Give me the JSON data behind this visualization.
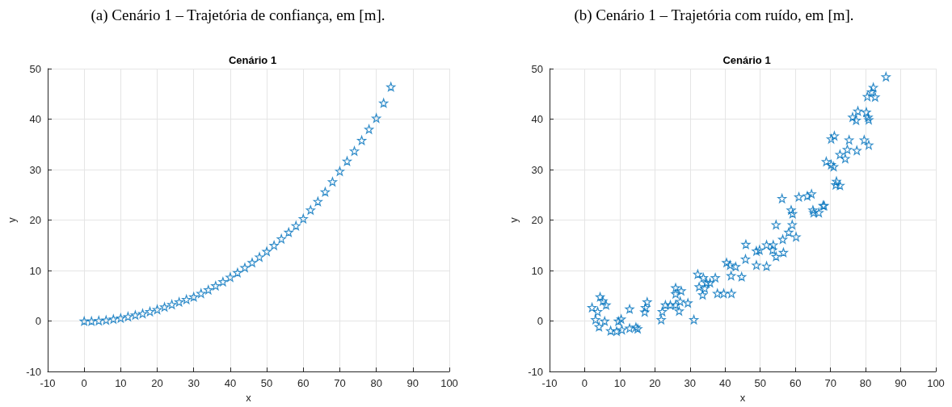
{
  "chart_data": [
    {
      "type": "scatter",
      "title": "Cenário 1",
      "annotations": [
        "(a) Cenário 1 – Trajetória de confiança, em [m]."
      ],
      "xlabel": "x",
      "ylabel": "y",
      "xlim": [
        -10,
        100
      ],
      "xticks": [
        -10,
        0,
        10,
        20,
        30,
        40,
        50,
        60,
        70,
        80,
        90,
        100
      ],
      "ylim": [
        -10,
        50
      ],
      "yticks": [
        -10,
        0,
        10,
        20,
        30,
        40,
        50
      ],
      "grid": true,
      "marker": "star",
      "series": [
        {
          "color": "#0072bd",
          "x": [
            0,
            2,
            4,
            6,
            8,
            10,
            12,
            14,
            16,
            18,
            20,
            22,
            24,
            26,
            28,
            30,
            32,
            34,
            36,
            38,
            40,
            42,
            44,
            46,
            48,
            50,
            52,
            54,
            56,
            58,
            60,
            62,
            64,
            66,
            68,
            70,
            72,
            74,
            76,
            78,
            80,
            82,
            84
          ],
          "values": [
            0,
            0,
            0.1,
            0.2,
            0.4,
            0.6,
            0.9,
            1.2,
            1.5,
            1.9,
            2.3,
            2.8,
            3.3,
            3.8,
            4.3,
            4.8,
            5.5,
            6.2,
            7.0,
            7.8,
            8.7,
            9.6,
            10.6,
            11.6,
            12.7,
            13.8,
            15.0,
            16.3,
            17.6,
            18.9,
            20.3,
            22.0,
            23.7,
            25.6,
            27.6,
            29.7,
            31.7,
            33.7,
            35.8,
            38.0,
            40.2,
            43.2,
            46.4
          ]
        }
      ]
    },
    {
      "type": "scatter",
      "title": "Cenário 1",
      "annotations": [
        "(b) Cenário 1 – Trajetória com ruído, em [m]."
      ],
      "xlabel": "x",
      "ylabel": "y",
      "xlim": [
        -10,
        100
      ],
      "xticks": [
        -10,
        0,
        10,
        20,
        30,
        40,
        50,
        60,
        70,
        80,
        90,
        100
      ],
      "ylim": [
        -10,
        50
      ],
      "yticks": [
        -10,
        0,
        10,
        20,
        30,
        40,
        50
      ],
      "grid": true,
      "marker": "star",
      "series": [
        {
          "color": "#0072bd",
          "x": [
            2.1,
            3.7,
            3.1,
            4.4,
            5.2,
            6.1,
            4.1,
            5.7,
            7.4,
            9.1,
            9.6,
            10.4,
            10.6,
            12.8,
            12.8,
            14.6,
            15.1,
            17.1,
            17.3,
            17.8,
            21.8,
            22.1,
            23.0,
            24.4,
            25.9,
            25.9,
            25.9,
            26.9,
            27.2,
            27.5,
            29.4,
            31.1,
            32.2,
            32.6,
            33.8,
            33.6,
            34.2,
            34.7,
            35.7,
            37.2,
            37.8,
            39.6,
            41.8,
            40.4,
            41.4,
            43.0,
            41.7,
            44.7,
            45.9,
            45.8,
            48.9,
            49.8,
            48.9,
            51.8,
            53.7,
            53.5,
            54.5,
            51.8,
            56.6,
            54.5,
            56.4,
            58.1,
            59.1,
            60.2,
            58.8,
            59.2,
            56.2,
            61.0,
            63.4,
            64.6,
            65.0,
            65.2,
            66.7,
            67.9,
            68.2,
            71.7,
            72.7,
            71.5,
            68.8,
            70.2,
            70.9,
            70.2,
            71.1,
            72.7,
            74.2,
            74.8,
            77.5,
            75.3,
            79.6,
            80.9,
            76.3,
            77.3,
            77.8,
            80.2,
            80.7,
            80.9,
            80.5,
            82.7,
            82.2,
            81.7,
            85.8
          ],
          "values": [
            2.7,
            1.9,
            0.3,
            4.8,
            4.0,
            3.2,
            -1.1,
            0.0,
            -1.9,
            -2.0,
            0.0,
            0.4,
            -1.7,
            2.4,
            -1.4,
            -1.2,
            -1.5,
            1.8,
            2.7,
            3.8,
            0.3,
            1.9,
            3.2,
            3.2,
            6.6,
            5.4,
            3.2,
            2.0,
            3.9,
            6.0,
            3.6,
            0.3,
            9.3,
            6.8,
            8.6,
            5.2,
            6.5,
            7.6,
            7.6,
            8.6,
            5.5,
            5.5,
            5.5,
            11.6,
            11.1,
            10.8,
            9.0,
            8.8,
            15.2,
            12.3,
            13.9,
            14.1,
            11.1,
            15.1,
            15.1,
            14.1,
            12.8,
            10.9,
            13.6,
            19.1,
            16.2,
            17.6,
            19.1,
            16.7,
            22.0,
            21.3,
            24.3,
            24.6,
            24.8,
            25.2,
            22.0,
            21.5,
            21.5,
            22.9,
            22.9,
            27.7,
            26.9,
            27.0,
            31.6,
            31.0,
            30.6,
            36.1,
            36.7,
            33.0,
            32.2,
            34.0,
            33.8,
            35.9,
            35.9,
            34.9,
            40.4,
            39.8,
            41.6,
            41.4,
            40.4,
            39.9,
            44.5,
            44.4,
            46.3,
            45.4,
            48.4
          ]
        }
      ]
    }
  ]
}
